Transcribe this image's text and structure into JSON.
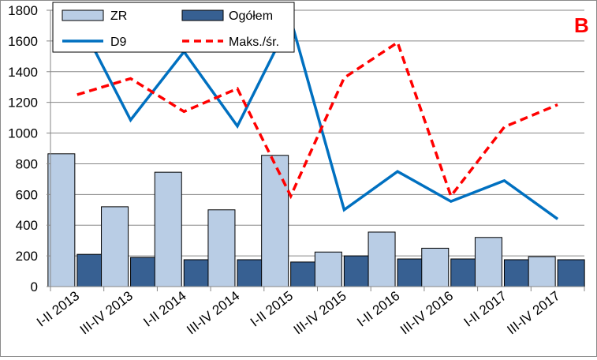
{
  "chart_data": {
    "type": "bar",
    "panel_label": "B",
    "categories": [
      "I-II 2013",
      "III-IV 2013",
      "I-II 2014",
      "III-IV 2014",
      "I-II 2015",
      "III-IV 2015",
      "I-II 2016",
      "III-IV 2016",
      "I-II 2017",
      "III-IV 2017"
    ],
    "ylim": [
      0,
      1800
    ],
    "yticks": [
      "0",
      "200",
      "400",
      "600",
      "800",
      "1000",
      "1200",
      "1400",
      "1600",
      "1800"
    ],
    "grid": true,
    "legend_position": "top-left",
    "series": [
      {
        "name": "ZR",
        "kind": "bar",
        "color": "#b9cde5",
        "values": [
          865,
          520,
          745,
          500,
          855,
          225,
          355,
          250,
          320,
          195
        ]
      },
      {
        "name": "Ogółem",
        "kind": "bar",
        "color": "#376092",
        "values": [
          210,
          190,
          175,
          175,
          160,
          200,
          180,
          180,
          175,
          175
        ]
      },
      {
        "name": "D9",
        "kind": "line",
        "color": "#0070c0",
        "dashed": false,
        "values": [
          1760,
          1085,
          1530,
          1045,
          1740,
          500,
          750,
          555,
          690,
          440
        ]
      },
      {
        "name": "Maks./śr.",
        "kind": "line",
        "color": "#ff0000",
        "dashed": true,
        "values": [
          1250,
          1355,
          1140,
          1290,
          590,
          1360,
          1590,
          590,
          1040,
          1185
        ]
      }
    ]
  }
}
